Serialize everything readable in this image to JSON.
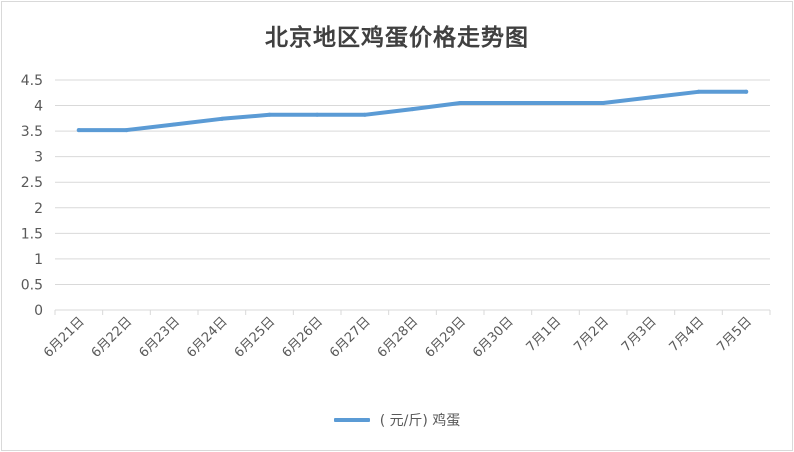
{
  "chart_data": {
    "type": "line",
    "title": "北京地区鸡蛋价格走势图",
    "categories": [
      "6月21日",
      "6月22日",
      "6月23日",
      "6月24日",
      "6月25日",
      "6月26日",
      "6月27日",
      "6月28日",
      "6月29日",
      "6月30日",
      "7月1日",
      "7月2日",
      "7月3日",
      "7月4日",
      "7月5日"
    ],
    "series": [
      {
        "name": "( 元/斤) 鸡蛋",
        "values": [
          3.52,
          3.52,
          3.63,
          3.74,
          3.82,
          3.82,
          3.82,
          3.93,
          4.05,
          4.05,
          4.05,
          4.05,
          4.16,
          4.27,
          4.27
        ],
        "color": "#5b9bd5"
      }
    ],
    "ylim": [
      0,
      4.5
    ],
    "yticks": [
      "0",
      "0.5",
      "1",
      "1.5",
      "2",
      "2.5",
      "3",
      "3.5",
      "4",
      "4.5"
    ],
    "grid": true,
    "legend": "bottom"
  }
}
